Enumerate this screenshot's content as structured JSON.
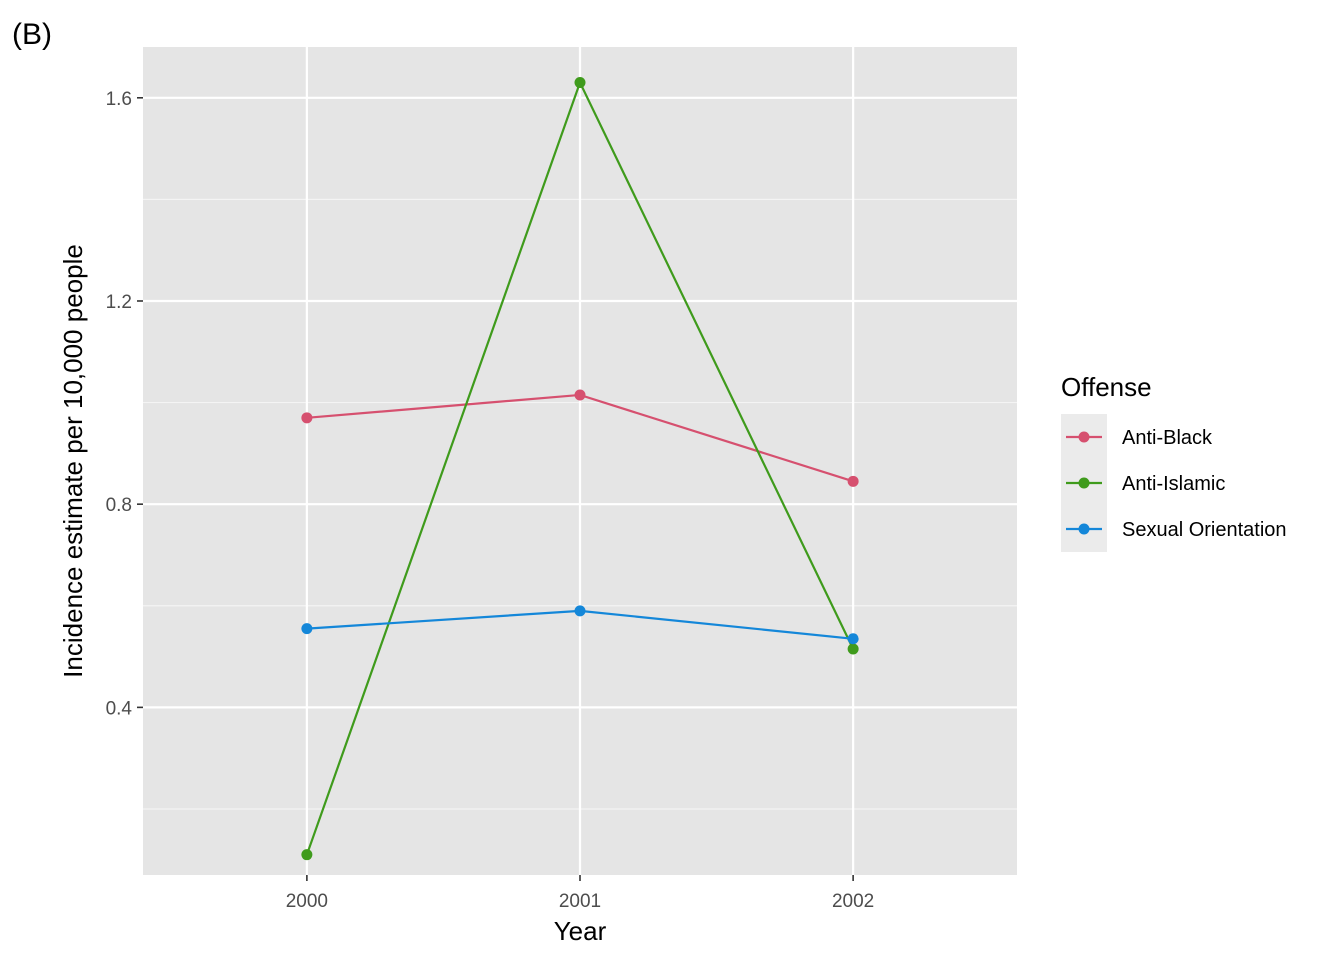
{
  "panel_tag": "(B)",
  "chart_data": {
    "type": "line",
    "title": "",
    "xlabel": "Year",
    "ylabel": "Incidence estimate per 10,000 people",
    "x": [
      2000,
      2001,
      2002
    ],
    "x_tick_labels": [
      "2000",
      "2001",
      "2002"
    ],
    "xlim": [
      1999.4,
      2002.6
    ],
    "ylim": [
      0.07,
      1.7
    ],
    "y_ticks": [
      0.4,
      0.8,
      1.2,
      1.6
    ],
    "y_tick_labels": [
      "0.4",
      "0.8",
      "1.2",
      "1.6"
    ],
    "y_minor_ticks": [
      0.2,
      0.6,
      1.0,
      1.4
    ],
    "grid": true,
    "legend": {
      "title": "Offense",
      "position": "right"
    },
    "series": [
      {
        "name": "Anti-Black",
        "color": "#d6506f",
        "values": [
          0.97,
          1.015,
          0.845
        ]
      },
      {
        "name": "Anti-Islamic",
        "color": "#3f9b1c",
        "values": [
          0.11,
          1.63,
          0.515
        ]
      },
      {
        "name": "Sexual Orientation",
        "color": "#1487d9",
        "values": [
          0.555,
          0.59,
          0.535
        ]
      }
    ]
  }
}
